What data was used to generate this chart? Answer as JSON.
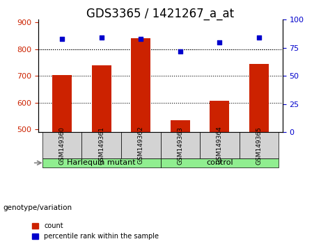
{
  "title": "GDS3365 / 1421267_a_at",
  "samples": [
    "GSM149360",
    "GSM149361",
    "GSM149362",
    "GSM149363",
    "GSM149364",
    "GSM149365"
  ],
  "counts": [
    703,
    740,
    840,
    535,
    608,
    745
  ],
  "percentiles": [
    83,
    84,
    83,
    72,
    80,
    84
  ],
  "ylim_left": [
    490,
    910
  ],
  "ylim_right": [
    0,
    100
  ],
  "yticks_left": [
    500,
    600,
    700,
    800,
    900
  ],
  "yticks_right": [
    0,
    25,
    50,
    75,
    100
  ],
  "bar_color": "#cc2200",
  "dot_color": "#0000cc",
  "bar_bottom": 490,
  "groups": [
    {
      "label": "Harlequin mutant",
      "samples": [
        0,
        1,
        2
      ],
      "color": "#90ee90"
    },
    {
      "label": "control",
      "samples": [
        3,
        4,
        5
      ],
      "color": "#90ee90"
    }
  ],
  "group_label": "genotype/variation",
  "legend_count_label": "count",
  "legend_pct_label": "percentile rank within the sample",
  "title_fontsize": 12,
  "tick_fontsize": 8,
  "label_fontsize": 8,
  "dotted_line_color": "#000000",
  "grid_ticks": [
    600,
    700,
    800
  ],
  "background_color": "#ffffff",
  "sample_bg_color": "#d3d3d3"
}
